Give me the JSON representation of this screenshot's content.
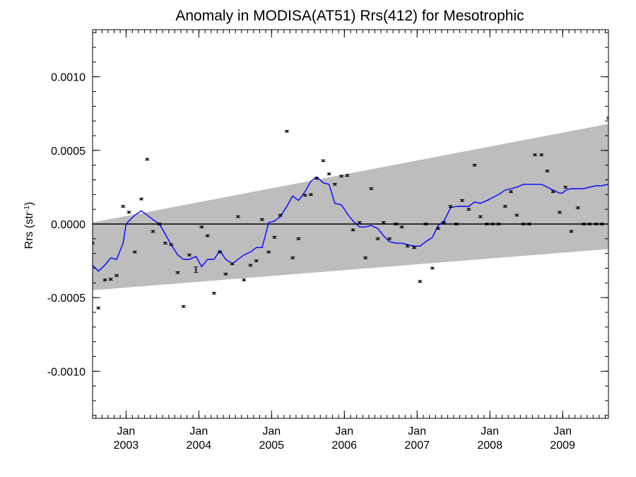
{
  "chart_data": {
    "type": "line",
    "title": "Anomaly in MODISA(AT51) Rrs(412) for Mesotrophic",
    "ylabel": "Rrs (str",
    "ylabel_sup": "-1",
    "ylabel_close": ")",
    "xlabel": "",
    "xlim": [
      2002.54,
      2009.63
    ],
    "ylim": [
      -0.00132,
      0.00132
    ],
    "y_ticks": [
      {
        "value": 0.001,
        "label": "0.0010"
      },
      {
        "value": 0.0005,
        "label": "0.0005"
      },
      {
        "value": 0.0,
        "label": "0.0000"
      },
      {
        "value": -0.0005,
        "label": "-0.0005"
      },
      {
        "value": -0.001,
        "label": "-0.0010"
      }
    ],
    "y_minor_step": 0.0001,
    "x_ticks": [
      {
        "value": 2003.0,
        "month": "Jan",
        "year": "2003"
      },
      {
        "value": 2004.0,
        "month": "Jan",
        "year": "2004"
      },
      {
        "value": 2005.0,
        "month": "Jan",
        "year": "2005"
      },
      {
        "value": 2006.0,
        "month": "Jan",
        "year": "2006"
      },
      {
        "value": 2007.0,
        "month": "Jan",
        "year": "2007"
      },
      {
        "value": 2008.0,
        "month": "Jan",
        "year": "2008"
      },
      {
        "value": 2009.0,
        "month": "Jan",
        "year": "2009"
      }
    ],
    "x_minor_step": 0.08333,
    "zero_line": true,
    "band": {
      "start_x": 2002.54,
      "end_x": 2009.63,
      "lower_start": -0.00045,
      "upper_start": 1e-05,
      "lower_end": -0.00017,
      "upper_end": 0.00068,
      "color": "#bdbdbd"
    },
    "series": [
      {
        "kind": "points",
        "color": "#000000",
        "x": [
          2002.54,
          2002.62,
          2002.71,
          2002.79,
          2002.87,
          2002.96,
          2003.04,
          2003.12,
          2003.21,
          2003.29,
          2003.37,
          2003.46,
          2003.54,
          2003.62,
          2003.71,
          2003.79,
          2003.87,
          2003.96,
          2004.04,
          2004.12,
          2004.21,
          2004.29,
          2004.37,
          2004.46,
          2004.54,
          2004.62,
          2004.71,
          2004.79,
          2004.87,
          2004.96,
          2005.04,
          2005.12,
          2005.21,
          2005.29,
          2005.37,
          2005.46,
          2005.54,
          2005.62,
          2005.71,
          2005.79,
          2005.87,
          2005.96,
          2006.04,
          2006.12,
          2006.21,
          2006.29,
          2006.37,
          2006.46,
          2006.54,
          2006.62,
          2006.71,
          2006.79,
          2006.87,
          2006.96,
          2007.04,
          2007.12,
          2007.21,
          2007.29,
          2007.37,
          2007.46,
          2007.54,
          2007.62,
          2007.71,
          2007.79,
          2007.87,
          2007.96,
          2008.04,
          2008.12,
          2008.21,
          2008.29,
          2008.37,
          2008.46,
          2008.54,
          2008.62,
          2008.71,
          2008.79,
          2008.87,
          2008.96,
          2009.04,
          2009.12,
          2009.21,
          2009.29,
          2009.37,
          2009.46,
          2009.54,
          2009.63
        ],
        "y": [
          -0.00013,
          -0.00057,
          -0.00038,
          -0.000375,
          -0.00035,
          0.00012,
          8e-05,
          -0.00019,
          0.00017,
          0.00044,
          -5e-05,
          0.0,
          -0.00013,
          -0.00014,
          -0.00033,
          -0.00056,
          -0.00021,
          -0.00031,
          -2e-05,
          -8e-05,
          -0.00047,
          -0.00019,
          -0.00034,
          -0.00027,
          5e-05,
          -0.00038,
          -0.00028,
          -0.00025,
          3e-05,
          -0.00019,
          -9e-05,
          6e-05,
          0.00063,
          -0.00023,
          -0.0001,
          0.000195,
          0.0002,
          0.00031,
          0.00043,
          0.00034,
          0.00027,
          0.000325,
          0.00033,
          -4e-05,
          1e-05,
          -0.00023,
          0.00024,
          -0.0001,
          1e-05,
          -0.0001,
          0.0,
          -2e-05,
          -0.00015,
          -0.00016,
          -0.00039,
          0.0,
          -0.0003,
          -3e-05,
          1e-05,
          0.00012,
          0.0,
          0.00016,
          0.0001,
          0.0004,
          5e-05,
          0.0,
          0.0,
          0.0,
          0.00012,
          0.00022,
          6e-05,
          0.0,
          0.0,
          0.00047,
          0.00047,
          0.00036,
          0.00022,
          8e-05,
          0.00025,
          -5e-05,
          0.00011,
          0.0,
          0.0,
          0.0,
          0.0,
          0.00072
        ],
        "errors": [
          6e-06,
          6e-06,
          6e-06,
          6e-06,
          6e-06,
          6e-06,
          6e-06,
          6e-06,
          6e-06,
          6e-06,
          6e-06,
          6e-06,
          6e-06,
          6e-06,
          6e-06,
          6e-06,
          6e-06,
          1.8e-05,
          6e-06,
          6e-06,
          6e-06,
          6e-06,
          6e-06,
          6e-06,
          6e-06,
          6e-06,
          6e-06,
          6e-06,
          6e-06,
          6e-06,
          6e-06,
          6e-06,
          6e-06,
          6e-06,
          6e-06,
          6e-06,
          6e-06,
          6e-06,
          6e-06,
          6e-06,
          6e-06,
          6e-06,
          6e-06,
          6e-06,
          6e-06,
          6e-06,
          6e-06,
          6e-06,
          6e-06,
          6e-06,
          6e-06,
          6e-06,
          6e-06,
          6e-06,
          6e-06,
          6e-06,
          6e-06,
          6e-06,
          6e-06,
          6e-06,
          6e-06,
          6e-06,
          6e-06,
          6e-06,
          6e-06,
          6e-06,
          6e-06,
          6e-06,
          6e-06,
          6e-06,
          6e-06,
          6e-06,
          6e-06,
          6e-06,
          6e-06,
          6e-06,
          6e-06,
          6e-06,
          6e-06,
          6e-06,
          6e-06,
          6e-06,
          6e-06,
          6e-06,
          6e-06,
          6e-06
        ]
      },
      {
        "kind": "line",
        "color": "#0000ff",
        "x": [
          2002.54,
          2002.62,
          2002.71,
          2002.79,
          2002.87,
          2002.96,
          2003.0,
          2003.04,
          2003.12,
          2003.21,
          2003.29,
          2003.37,
          2003.46,
          2003.54,
          2003.62,
          2003.71,
          2003.79,
          2003.87,
          2003.96,
          2004.04,
          2004.12,
          2004.21,
          2004.29,
          2004.37,
          2004.46,
          2004.54,
          2004.62,
          2004.71,
          2004.79,
          2004.87,
          2004.96,
          2005.04,
          2005.12,
          2005.21,
          2005.29,
          2005.37,
          2005.46,
          2005.54,
          2005.62,
          2005.71,
          2005.79,
          2005.87,
          2005.96,
          2006.04,
          2006.12,
          2006.21,
          2006.29,
          2006.37,
          2006.46,
          2006.54,
          2006.62,
          2006.71,
          2006.79,
          2006.87,
          2006.96,
          2007.04,
          2007.12,
          2007.21,
          2007.29,
          2007.37,
          2007.46,
          2007.54,
          2007.62,
          2007.71,
          2007.79,
          2007.87,
          2007.96,
          2008.04,
          2008.12,
          2008.21,
          2008.29,
          2008.37,
          2008.46,
          2008.54,
          2008.62,
          2008.71,
          2008.79,
          2008.87,
          2008.96,
          2009.0,
          2009.04,
          2009.12,
          2009.21,
          2009.29,
          2009.37,
          2009.46,
          2009.54,
          2009.63
        ],
        "y": [
          -0.00028,
          -0.00032,
          -0.00028,
          -0.00023,
          -0.00024,
          -0.00013,
          0.0,
          2e-05,
          6e-05,
          9e-05,
          6e-05,
          3e-05,
          0.0,
          -7e-05,
          -0.00014,
          -0.00021,
          -0.00024,
          -0.00024,
          -0.00022,
          -0.00029,
          -0.00024,
          -0.00024,
          -0.00018,
          -0.00024,
          -0.00027,
          -0.00024,
          -0.00021,
          -0.00019,
          -0.00016,
          -0.00016,
          1e-05,
          2e-05,
          5e-05,
          0.00012,
          0.00019,
          0.00016,
          0.00022,
          0.00029,
          0.00032,
          0.00028,
          0.00027,
          0.00014,
          0.00013,
          7e-05,
          2e-05,
          -2e-05,
          -2e-05,
          -1e-05,
          -3e-05,
          -8e-05,
          -0.00012,
          -0.00013,
          -0.00013,
          -0.00014,
          -0.00015,
          -0.00015,
          -0.00012,
          -9e-05,
          -1e-05,
          2e-05,
          0.00011,
          0.00012,
          0.00012,
          0.00012,
          0.00015,
          0.00014,
          0.00016,
          0.00018,
          0.0002,
          0.00023,
          0.00024,
          0.00025,
          0.00027,
          0.00027,
          0.00027,
          0.00027,
          0.00025,
          0.00023,
          0.00021,
          0.00021,
          0.00023,
          0.00024,
          0.00024,
          0.00024,
          0.00025,
          0.00026,
          0.00026,
          0.00027
        ]
      }
    ]
  }
}
